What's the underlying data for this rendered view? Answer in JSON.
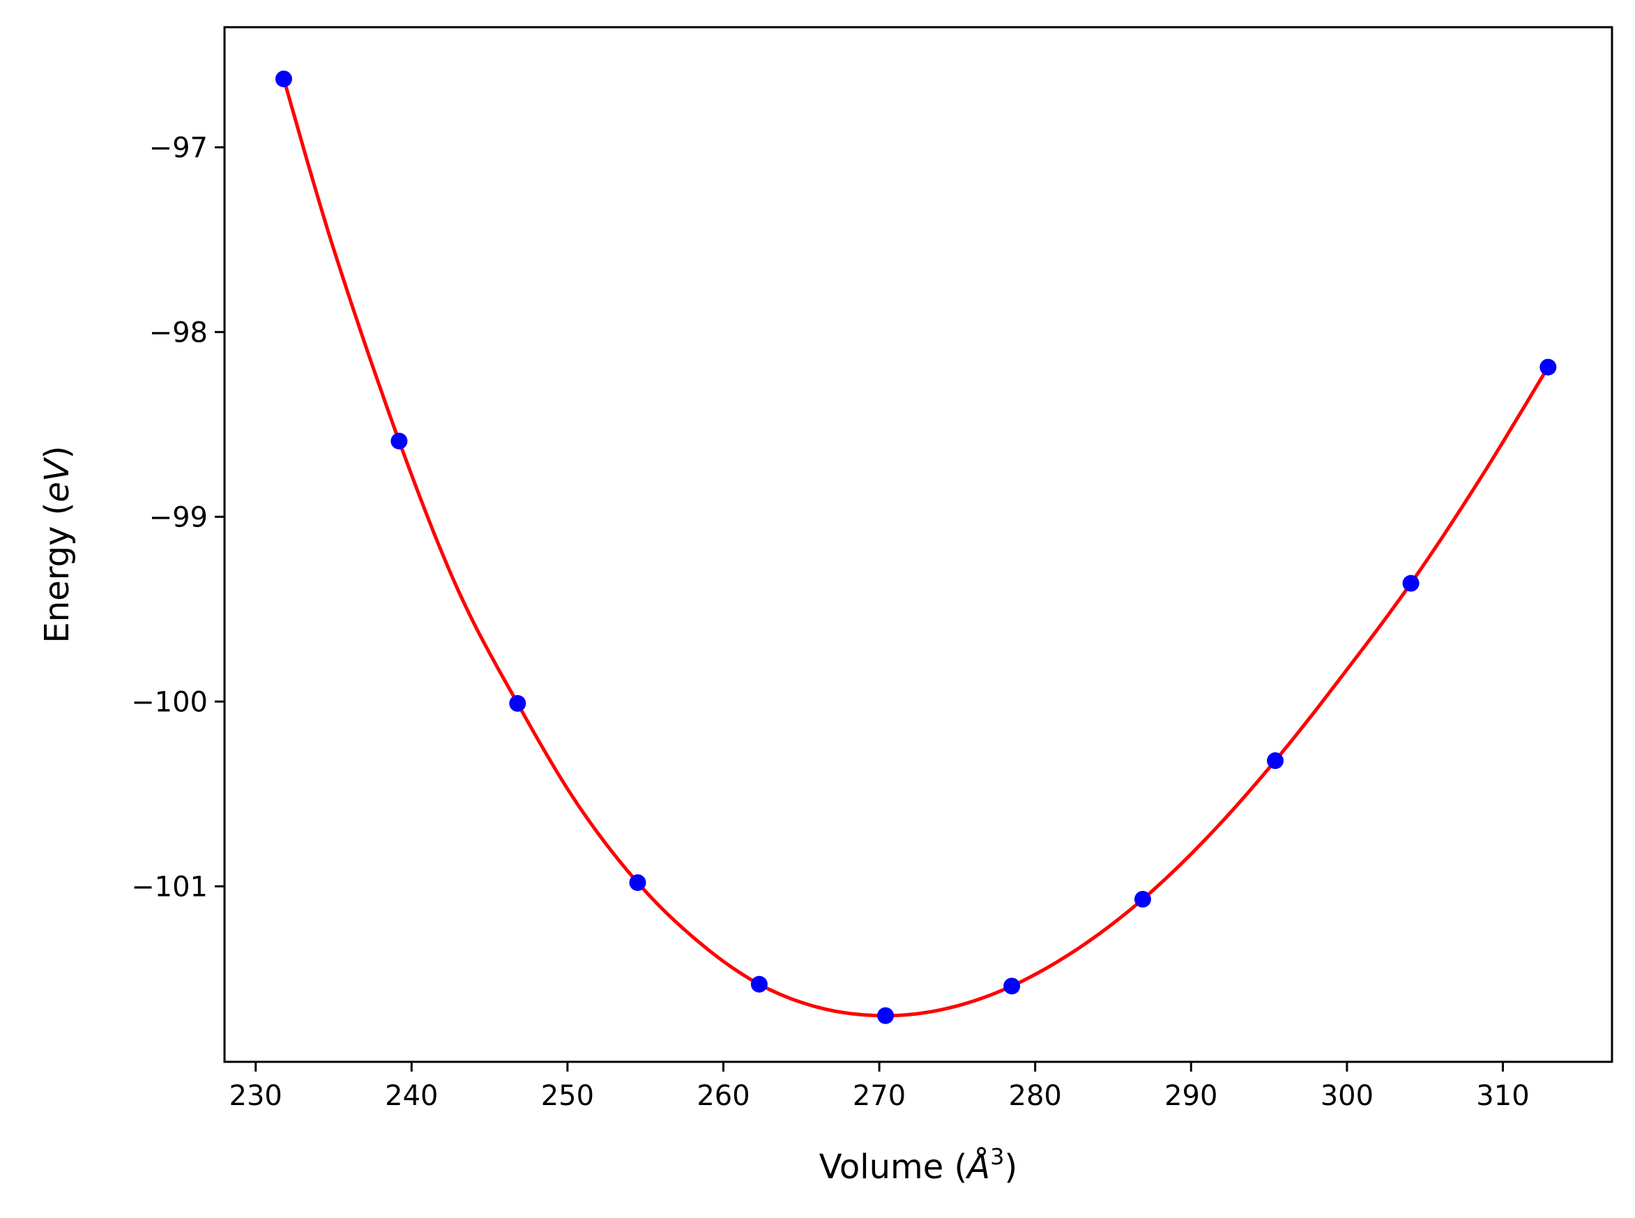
{
  "chart_data": {
    "type": "scatter",
    "xlabel": {
      "prefix": "Volume (",
      "symbol": "Å",
      "exponent": "3",
      "suffix": ")"
    },
    "ylabel": {
      "prefix": "Energy (",
      "unit": "eV",
      "suffix": ")"
    },
    "xlim": [
      228,
      317
    ],
    "ylim": [
      -101.95,
      -96.35
    ],
    "x_ticks": [
      230,
      240,
      250,
      260,
      270,
      280,
      290,
      300,
      310
    ],
    "y_ticks": [
      -97,
      -98,
      -99,
      -100,
      -101
    ],
    "x_tick_labels": [
      "230",
      "240",
      "250",
      "260",
      "270",
      "280",
      "290",
      "300",
      "310"
    ],
    "y_tick_labels": [
      "−97",
      "−98",
      "−99",
      "−100",
      "−101"
    ],
    "grid": false,
    "series": [
      {
        "type": "scatter",
        "color": "#0000ff",
        "x": [
          231.8,
          239.2,
          246.8,
          254.5,
          262.3,
          270.4,
          278.5,
          286.9,
          295.4,
          304.1,
          312.9
        ],
        "y": [
          -96.63,
          -98.59,
          -100.01,
          -100.98,
          -101.53,
          -101.7,
          -101.54,
          -101.07,
          -100.32,
          -99.36,
          -98.19
        ]
      },
      {
        "type": "line",
        "color": "#ff0000",
        "x": [
          231.8,
          235.0,
          239.2,
          243.0,
          246.8,
          250.6,
          254.5,
          258.4,
          262.3,
          266.3,
          270.4,
          274.4,
          278.5,
          282.7,
          286.9,
          291.1,
          295.4,
          299.7,
          304.1,
          308.5,
          312.9
        ],
        "y": [
          -96.63,
          -97.55,
          -98.59,
          -99.4,
          -100.01,
          -100.55,
          -100.98,
          -101.3,
          -101.53,
          -101.66,
          -101.7,
          -101.66,
          -101.54,
          -101.34,
          -101.07,
          -100.73,
          -100.32,
          -99.86,
          -99.36,
          -98.8,
          -98.19
        ]
      }
    ]
  }
}
